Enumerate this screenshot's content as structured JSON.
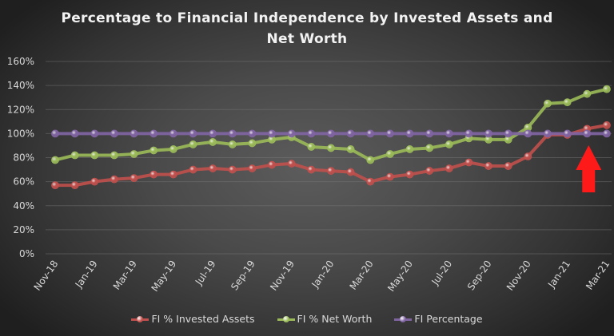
{
  "chart_data": {
    "type": "line",
    "title": "Percentage to Financial Independence by Invested Assets and Net Worth",
    "title_lines": [
      "Percentage to Financial Independence by Invested Assets and",
      "Net Worth"
    ],
    "xlabel": "",
    "ylabel": "",
    "ylim": [
      0,
      160
    ],
    "yticks": [
      "0%",
      "20%",
      "40%",
      "60%",
      "80%",
      "100%",
      "120%",
      "140%",
      "160%"
    ],
    "grid": true,
    "legend_position": "bottom",
    "x": [
      "Nov-18",
      "Dec-18",
      "Jan-19",
      "Feb-19",
      "Mar-19",
      "Apr-19",
      "May-19",
      "Jun-19",
      "Jul-19",
      "Aug-19",
      "Sep-19",
      "Oct-19",
      "Nov-19",
      "Dec-19",
      "Jan-20",
      "Feb-20",
      "Mar-20",
      "Apr-20",
      "May-20",
      "Jun-20",
      "Jul-20",
      "Aug-20",
      "Sep-20",
      "Oct-20",
      "Nov-20",
      "Dec-20",
      "Jan-21",
      "Feb-21",
      "Mar-21"
    ],
    "xtick_labels": [
      "Nov-18",
      "Jan-19",
      "Mar-19",
      "May-19",
      "Jul-19",
      "Sep-19",
      "Nov-19",
      "Jan-20",
      "Mar-20",
      "May-20",
      "Jul-20",
      "Sep-20",
      "Nov-20",
      "Jan-21",
      "Mar-21"
    ],
    "series": [
      {
        "name": "FI % Invested Assets",
        "color": "#c0504d",
        "values": [
          57,
          57,
          60,
          62,
          63,
          66,
          66,
          70,
          71,
          70,
          71,
          74,
          75,
          70,
          69,
          68,
          60,
          64,
          66,
          69,
          71,
          76,
          73,
          73,
          81,
          99,
          99,
          104,
          107
        ]
      },
      {
        "name": "FI % Net Worth",
        "color": "#9bbb59",
        "values": [
          78,
          82,
          82,
          82,
          83,
          86,
          87,
          91,
          93,
          91,
          92,
          95,
          97,
          89,
          88,
          87,
          78,
          83,
          87,
          88,
          91,
          96,
          95,
          95,
          105,
          125,
          126,
          133,
          137
        ]
      },
      {
        "name": "FI Percentage",
        "color": "#8064a2",
        "values": [
          100,
          100,
          100,
          100,
          100,
          100,
          100,
          100,
          100,
          100,
          100,
          100,
          100,
          100,
          100,
          100,
          100,
          100,
          100,
          100,
          100,
          100,
          100,
          100,
          100,
          100,
          100,
          100,
          100
        ]
      }
    ],
    "annotations": [
      {
        "type": "arrow",
        "color": "#ff1a1a",
        "direction": "up",
        "points_to": "Feb-21"
      }
    ]
  }
}
